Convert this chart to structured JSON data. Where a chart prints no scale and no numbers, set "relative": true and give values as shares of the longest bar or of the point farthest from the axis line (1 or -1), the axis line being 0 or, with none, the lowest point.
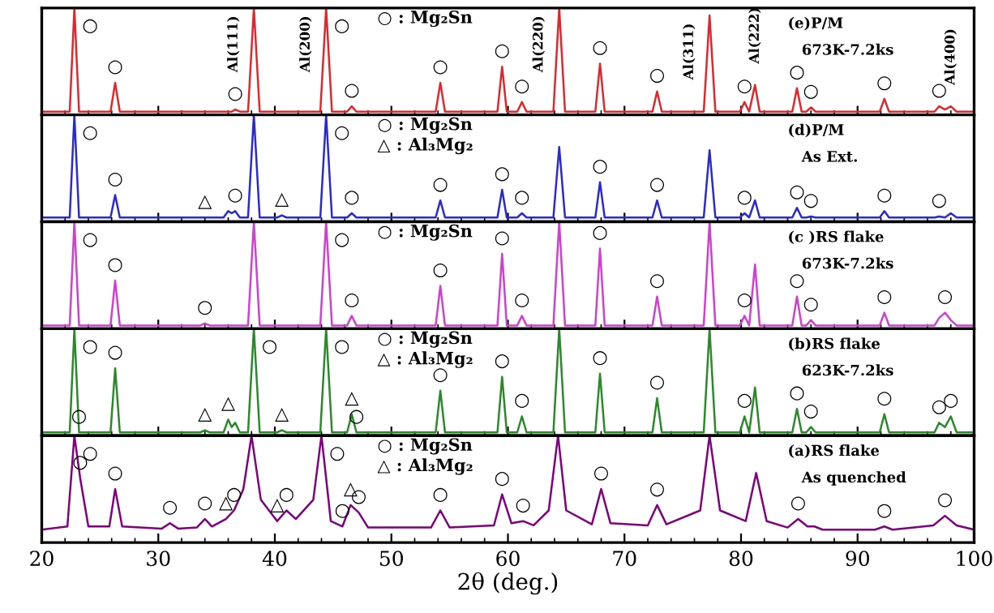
{
  "chart_data": [
    {
      "type": "line",
      "relative": true,
      "xlim": [
        20,
        100
      ],
      "xticks": [
        20,
        30,
        40,
        50,
        60,
        70,
        80,
        90,
        100
      ],
      "tick_labels": false,
      "x": [
        20,
        22.4,
        22.8,
        23.2,
        25.9,
        26.3,
        26.7,
        33.6,
        34,
        34.4,
        35.6,
        36,
        36.3,
        36.6,
        37,
        37.7,
        38.2,
        38.7,
        40.2,
        40.6,
        41,
        43.9,
        44.4,
        44.9,
        46.2,
        46.6,
        47,
        53.8,
        54.2,
        54.6,
        59.1,
        59.5,
        59.9,
        60.8,
        61.2,
        61.6,
        63.9,
        64.4,
        64.9,
        67.5,
        67.9,
        68.3,
        72.4,
        72.8,
        73.2,
        76.8,
        77.3,
        77.8,
        79.9,
        80.3,
        80.7,
        81.2,
        81.6,
        84.4,
        84.8,
        85.2,
        85.6,
        86,
        86.4,
        91.9,
        92.3,
        92.7,
        96.6,
        97,
        97.5,
        98,
        98.5,
        100
      ],
      "series": [
        {
          "color": "#e0282c",
          "values": [
            0.03,
            0.03,
            1,
            0.03,
            0.03,
            0.3,
            0.03,
            0.03,
            0.03,
            0.03,
            0.03,
            0.03,
            0.03,
            0.05,
            0.03,
            0.03,
            1,
            0.03,
            0.03,
            0.03,
            0.03,
            0.03,
            1,
            0.03,
            0.03,
            0.08,
            0.03,
            0.03,
            0.3,
            0.03,
            0.03,
            0.45,
            0.03,
            0.03,
            0.12,
            0.03,
            0.03,
            1,
            0.03,
            0.03,
            0.48,
            0.03,
            0.03,
            0.22,
            0.03,
            0.03,
            0.93,
            0.03,
            0.03,
            0.12,
            0.03,
            0.28,
            0.03,
            0.03,
            0.25,
            0.03,
            0.03,
            0.07,
            0.03,
            0.03,
            0.15,
            0.03,
            0.03,
            0.08,
            0.05,
            0.08,
            0.03,
            0.03
          ]
        }
      ],
      "annotations": [
        "○ : Mg₂Sn",
        "(e)P/M",
        "673K-7.2ks",
        {
          "text": "Al(111)",
          "x": 38.2,
          "y": 1
        },
        {
          "text": "Al(200)",
          "x": 44.4,
          "y": 1
        },
        {
          "text": "Al(220)",
          "x": 64.4,
          "y": 1
        },
        {
          "text": "Al(311)",
          "x": 77.3,
          "y": 0.93
        },
        {
          "text": "Al(222)",
          "x": 81.2,
          "y": 0.28
        },
        {
          "text": "Al(400)",
          "x": 98,
          "y": 0.08
        },
        {
          "text": "○",
          "x": 22.8,
          "y": 1
        },
        {
          "text": "○",
          "x": 26.3,
          "y": 0.3
        },
        {
          "text": "○",
          "x": 36.6,
          "y": 0.05
        },
        {
          "text": "○",
          "x": 44.4,
          "y": 1
        },
        {
          "text": "○",
          "x": 46.6,
          "y": 0.08
        },
        {
          "text": "○",
          "x": 54.2,
          "y": 0.3
        },
        {
          "text": "○",
          "x": 59.5,
          "y": 0.45
        },
        {
          "text": "○",
          "x": 61.2,
          "y": 0.12
        },
        {
          "text": "○",
          "x": 67.9,
          "y": 0.48
        },
        {
          "text": "○",
          "x": 72.8,
          "y": 0.22
        },
        {
          "text": "○",
          "x": 80.3,
          "y": 0.12
        },
        {
          "text": "○",
          "x": 84.8,
          "y": 0.25
        },
        {
          "text": "○",
          "x": 86,
          "y": 0.07
        },
        {
          "text": "○",
          "x": 92.3,
          "y": 0.15
        },
        {
          "text": "○",
          "x": 97,
          "y": 0.08
        }
      ]
    },
    {
      "type": "line",
      "relative": true,
      "xlim": [
        20,
        100
      ],
      "xticks": [
        20,
        30,
        40,
        50,
        60,
        70,
        80,
        90,
        100
      ],
      "tick_labels": false,
      "x": [
        20,
        22.4,
        22.8,
        23.2,
        25.9,
        26.3,
        26.7,
        33.6,
        34,
        34.4,
        35.6,
        36,
        36.3,
        36.6,
        37,
        37.7,
        38.2,
        38.7,
        40.2,
        40.6,
        41,
        43.9,
        44.4,
        44.9,
        46.2,
        46.6,
        47,
        53.8,
        54.2,
        54.6,
        59.1,
        59.5,
        59.9,
        60.8,
        61.2,
        61.6,
        63.9,
        64.4,
        64.9,
        67.5,
        67.9,
        68.3,
        72.4,
        72.8,
        73.2,
        76.8,
        77.3,
        77.8,
        79.9,
        80.3,
        80.7,
        81.2,
        81.6,
        84.4,
        84.8,
        85.2,
        85.6,
        86,
        86.4,
        91.9,
        92.3,
        92.7,
        96.6,
        97,
        97.5,
        98,
        98.5,
        100
      ],
      "series": [
        {
          "color": "#2a2ad0",
          "values": [
            0.04,
            0.04,
            1,
            0.04,
            0.04,
            0.25,
            0.04,
            0.04,
            0.04,
            0.04,
            0.04,
            0.1,
            0.08,
            0.1,
            0.04,
            0.04,
            1,
            0.04,
            0.04,
            0.06,
            0.04,
            0.04,
            1,
            0.04,
            0.04,
            0.08,
            0.04,
            0.04,
            0.2,
            0.04,
            0.04,
            0.3,
            0.04,
            0.04,
            0.08,
            0.04,
            0.04,
            0.7,
            0.04,
            0.04,
            0.37,
            0.04,
            0.04,
            0.2,
            0.04,
            0.04,
            0.67,
            0.04,
            0.04,
            0.08,
            0.04,
            0.2,
            0.04,
            0.04,
            0.13,
            0.04,
            0.04,
            0.05,
            0.04,
            0.04,
            0.1,
            0.04,
            0.04,
            0.05,
            0.04,
            0.08,
            0.04,
            0.04
          ]
        }
      ],
      "annotations": [
        "○ : Mg₂Sn",
        "△ : Al₃Mg₂",
        "(d)P/M",
        "As Ext.",
        {
          "text": "○",
          "x": 22.8,
          "y": 1
        },
        {
          "text": "○",
          "x": 26.3,
          "y": 0.25
        },
        {
          "text": "○",
          "x": 36.6,
          "y": 0.1
        },
        {
          "text": "○",
          "x": 44.4,
          "y": 1
        },
        {
          "text": "○",
          "x": 46.6,
          "y": 0.08
        },
        {
          "text": "○",
          "x": 54.2,
          "y": 0.2
        },
        {
          "text": "○",
          "x": 59.5,
          "y": 0.3
        },
        {
          "text": "○",
          "x": 61.2,
          "y": 0.08
        },
        {
          "text": "○",
          "x": 67.9,
          "y": 0.37
        },
        {
          "text": "○",
          "x": 72.8,
          "y": 0.2
        },
        {
          "text": "○",
          "x": 80.3,
          "y": 0.08
        },
        {
          "text": "○",
          "x": 84.8,
          "y": 0.13
        },
        {
          "text": "○",
          "x": 86,
          "y": 0.05
        },
        {
          "text": "○",
          "x": 92.3,
          "y": 0.1
        },
        {
          "text": "○",
          "x": 97,
          "y": 0.05
        },
        {
          "text": "△",
          "x": 34,
          "y": 0.04
        },
        {
          "text": "△",
          "x": 40.6,
          "y": 0.06
        }
      ]
    },
    {
      "type": "line",
      "relative": true,
      "xlim": [
        20,
        100
      ],
      "xticks": [
        20,
        30,
        40,
        50,
        60,
        70,
        80,
        90,
        100
      ],
      "tick_labels": false,
      "x": [
        20,
        22.4,
        22.8,
        23.2,
        25.9,
        26.3,
        26.7,
        33.6,
        34,
        34.4,
        35.6,
        36,
        36.3,
        36.6,
        37,
        37.7,
        38.2,
        38.7,
        40.2,
        40.6,
        41,
        43.9,
        44.4,
        44.9,
        46.2,
        46.6,
        47,
        53.8,
        54.2,
        54.6,
        59.1,
        59.5,
        59.9,
        60.8,
        61.2,
        61.6,
        63.9,
        64.4,
        64.9,
        67.5,
        67.9,
        68.3,
        72.4,
        72.8,
        73.2,
        76.8,
        77.3,
        77.8,
        79.9,
        80.3,
        80.7,
        81.2,
        81.6,
        84.4,
        84.8,
        85.2,
        85.6,
        86,
        86.4,
        91.9,
        92.3,
        92.7,
        96.6,
        97,
        97.5,
        98,
        98.5,
        100
      ],
      "series": [
        {
          "color": "#d040d0",
          "values": [
            0.03,
            0.03,
            1,
            0.03,
            0.03,
            0.45,
            0.03,
            0.03,
            0.05,
            0.03,
            0.03,
            0.03,
            0.03,
            0.03,
            0.03,
            0.03,
            1,
            0.03,
            0.03,
            0.03,
            0.03,
            0.03,
            1,
            0.03,
            0.03,
            0.12,
            0.03,
            0.03,
            0.4,
            0.03,
            0.03,
            0.7,
            0.03,
            0.03,
            0.12,
            0.03,
            0.03,
            1,
            0.03,
            0.03,
            0.75,
            0.03,
            0.03,
            0.3,
            0.03,
            0.03,
            1,
            0.03,
            0.03,
            0.12,
            0.03,
            0.6,
            0.03,
            0.03,
            0.3,
            0.03,
            0.03,
            0.08,
            0.03,
            0.03,
            0.15,
            0.03,
            0.03,
            0.1,
            0.15,
            0.08,
            0.03,
            0.03
          ]
        }
      ],
      "annotations": [
        "○ : Mg₂Sn",
        "(c )RS flake",
        "673K-7.2ks",
        {
          "text": "○",
          "x": 22.8,
          "y": 1
        },
        {
          "text": "○",
          "x": 26.3,
          "y": 0.45
        },
        {
          "text": "○",
          "x": 34,
          "y": 0.05
        },
        {
          "text": "○",
          "x": 44.4,
          "y": 1
        },
        {
          "text": "○",
          "x": 46.6,
          "y": 0.12
        },
        {
          "text": "○",
          "x": 54.2,
          "y": 0.4
        },
        {
          "text": "○",
          "x": 59.5,
          "y": 0.7
        },
        {
          "text": "○",
          "x": 61.2,
          "y": 0.12
        },
        {
          "text": "○",
          "x": 67.9,
          "y": 0.75
        },
        {
          "text": "○",
          "x": 72.8,
          "y": 0.3
        },
        {
          "text": "○",
          "x": 80.3,
          "y": 0.12
        },
        {
          "text": "○",
          "x": 84.8,
          "y": 0.3
        },
        {
          "text": "○",
          "x": 86,
          "y": 0.08
        },
        {
          "text": "○",
          "x": 92.3,
          "y": 0.15
        },
        {
          "text": "○",
          "x": 97.5,
          "y": 0.15
        }
      ]
    },
    {
      "type": "line",
      "relative": true,
      "xlim": [
        20,
        100
      ],
      "xticks": [
        20,
        30,
        40,
        50,
        60,
        70,
        80,
        90,
        100
      ],
      "tick_labels": false,
      "x": [
        20,
        22.4,
        22.8,
        23.2,
        25.9,
        26.3,
        26.7,
        33.6,
        34,
        34.4,
        35.6,
        36,
        36.3,
        36.6,
        37,
        37.7,
        38.2,
        38.7,
        40.2,
        40.6,
        41,
        43.9,
        44.4,
        44.9,
        46.2,
        46.6,
        47,
        53.8,
        54.2,
        54.6,
        59.1,
        59.5,
        59.9,
        60.8,
        61.2,
        61.6,
        63.9,
        64.4,
        64.9,
        67.5,
        67.9,
        68.3,
        72.4,
        72.8,
        73.2,
        76.8,
        77.3,
        77.8,
        79.9,
        80.3,
        80.7,
        81.2,
        81.6,
        84.4,
        84.8,
        85.2,
        85.6,
        86,
        86.4,
        91.9,
        92.3,
        92.7,
        96.6,
        97,
        97.5,
        98,
        98.5,
        100
      ],
      "series": [
        {
          "color": "#2a8a2a",
          "values": [
            0.03,
            0.03,
            1,
            0.03,
            0.03,
            0.63,
            0.03,
            0.03,
            0.05,
            0.03,
            0.03,
            0.15,
            0.08,
            0.12,
            0.03,
            0.03,
            1,
            0.03,
            0.03,
            0.05,
            0.03,
            0.03,
            1,
            0.03,
            0.03,
            0.2,
            0.03,
            0.03,
            0.42,
            0.03,
            0.03,
            0.55,
            0.03,
            0.03,
            0.18,
            0.03,
            0.03,
            1,
            0.03,
            0.03,
            0.58,
            0.03,
            0.03,
            0.35,
            0.03,
            0.03,
            1,
            0.03,
            0.03,
            0.18,
            0.03,
            0.45,
            0.03,
            0.03,
            0.25,
            0.03,
            0.03,
            0.08,
            0.03,
            0.03,
            0.2,
            0.03,
            0.03,
            0.12,
            0.08,
            0.18,
            0.03,
            0.03
          ]
        }
      ],
      "annotations": [
        "○ : Mg₂Sn",
        "△ : Al₃Mg₂",
        "(b)RS flake",
        "623K-7.2ks",
        {
          "text": "○",
          "x": 22.8,
          "y": 1
        },
        {
          "text": "○",
          "x": 23.2,
          "y": 0.03
        },
        {
          "text": "○",
          "x": 26.3,
          "y": 0.63
        },
        {
          "text": "○",
          "x": 38.2,
          "y": 1
        },
        {
          "text": "○",
          "x": 44.4,
          "y": 1
        },
        {
          "text": "○",
          "x": 47,
          "y": 0.03
        },
        {
          "text": "○",
          "x": 54.2,
          "y": 0.42
        },
        {
          "text": "○",
          "x": 59.5,
          "y": 0.55
        },
        {
          "text": "○",
          "x": 61.2,
          "y": 0.18
        },
        {
          "text": "○",
          "x": 67.9,
          "y": 0.58
        },
        {
          "text": "○",
          "x": 72.8,
          "y": 0.35
        },
        {
          "text": "○",
          "x": 80.3,
          "y": 0.18
        },
        {
          "text": "○",
          "x": 84.8,
          "y": 0.25
        },
        {
          "text": "○",
          "x": 86,
          "y": 0.08
        },
        {
          "text": "○",
          "x": 92.3,
          "y": 0.2
        },
        {
          "text": "○",
          "x": 97,
          "y": 0.12
        },
        {
          "text": "○",
          "x": 98,
          "y": 0.18
        },
        {
          "text": "△",
          "x": 34,
          "y": 0.05
        },
        {
          "text": "△",
          "x": 36,
          "y": 0.15
        },
        {
          "text": "△",
          "x": 40.6,
          "y": 0.05
        },
        {
          "text": "△",
          "x": 46.6,
          "y": 0.2
        }
      ]
    },
    {
      "type": "line",
      "relative": true,
      "xlim": [
        20,
        100
      ],
      "xticks": [
        20,
        30,
        40,
        50,
        60,
        70,
        80,
        90,
        100
      ],
      "tick_labels": "x",
      "xlabel": "2θ (deg.)",
      "x": [
        20,
        22.2,
        22.8,
        23.3,
        24,
        25.8,
        26.3,
        26.9,
        30.3,
        31,
        31.7,
        33.3,
        34,
        34.6,
        35.8,
        36.5,
        37.3,
        38,
        38.8,
        40.2,
        41,
        41.8,
        43.3,
        44,
        44.8,
        45.8,
        46.5,
        47.2,
        48,
        53.4,
        54.2,
        55,
        58.8,
        59.5,
        60.3,
        61.3,
        62.2,
        63.5,
        64.3,
        65,
        67.2,
        68,
        68.8,
        72,
        72.8,
        73.6,
        76.5,
        77.3,
        78.2,
        80.4,
        81.3,
        82.2,
        84,
        84.9,
        85.7,
        86.3,
        87,
        91.5,
        92.3,
        93,
        96.5,
        97.5,
        98.5,
        100
      ],
      "series": [
        {
          "color": "#800080",
          "values": [
            0.12,
            0.15,
            1,
            0.6,
            0.15,
            0.15,
            0.5,
            0.15,
            0.13,
            0.18,
            0.13,
            0.14,
            0.22,
            0.15,
            0.22,
            0.3,
            0.5,
            1,
            0.4,
            0.2,
            0.3,
            0.22,
            0.4,
            1,
            0.2,
            0.15,
            0.35,
            0.28,
            0.14,
            0.14,
            0.3,
            0.14,
            0.16,
            0.45,
            0.18,
            0.2,
            0.16,
            0.3,
            1,
            0.3,
            0.17,
            0.5,
            0.18,
            0.16,
            0.35,
            0.17,
            0.3,
            1,
            0.3,
            0.2,
            0.65,
            0.2,
            0.14,
            0.22,
            0.15,
            0.15,
            0.12,
            0.12,
            0.15,
            0.12,
            0.16,
            0.25,
            0.16,
            0.12
          ]
        }
      ],
      "annotations": [
        "○ : Mg₂Sn",
        "△ : Al₃Mg₂",
        "(a)RS flake",
        "As quenched",
        {
          "text": "○",
          "x": 22.8,
          "y": 1
        },
        {
          "text": "○",
          "x": 23.3,
          "y": 0.6
        },
        {
          "text": "○",
          "x": 26.3,
          "y": 0.5
        },
        {
          "text": "○",
          "x": 31,
          "y": 0.18
        },
        {
          "text": "○",
          "x": 34,
          "y": 0.22
        },
        {
          "text": "○",
          "x": 36.5,
          "y": 0.3
        },
        {
          "text": "○",
          "x": 41,
          "y": 0.3
        },
        {
          "text": "○",
          "x": 44,
          "y": 1
        },
        {
          "text": "○",
          "x": 45.8,
          "y": 0.15
        },
        {
          "text": "○",
          "x": 47.2,
          "y": 0.28
        },
        {
          "text": "○",
          "x": 54.2,
          "y": 0.3
        },
        {
          "text": "○",
          "x": 59.5,
          "y": 0.45
        },
        {
          "text": "○",
          "x": 61.3,
          "y": 0.2
        },
        {
          "text": "○",
          "x": 68,
          "y": 0.5
        },
        {
          "text": "○",
          "x": 72.8,
          "y": 0.35
        },
        {
          "text": "○",
          "x": 84.9,
          "y": 0.22
        },
        {
          "text": "○",
          "x": 92.3,
          "y": 0.15
        },
        {
          "text": "○",
          "x": 97.5,
          "y": 0.25
        },
        {
          "text": "△",
          "x": 35.8,
          "y": 0.22
        },
        {
          "text": "△",
          "x": 40.2,
          "y": 0.2
        },
        {
          "text": "△",
          "x": 46.5,
          "y": 0.35
        }
      ]
    }
  ]
}
